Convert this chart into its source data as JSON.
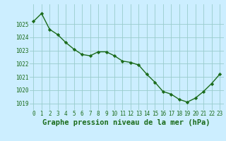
{
  "x": [
    0,
    1,
    2,
    3,
    4,
    5,
    6,
    7,
    8,
    9,
    10,
    11,
    12,
    13,
    14,
    15,
    16,
    17,
    18,
    19,
    20,
    21,
    22,
    23
  ],
  "y": [
    1025.2,
    1025.8,
    1024.6,
    1024.2,
    1023.6,
    1023.1,
    1022.7,
    1022.6,
    1022.9,
    1022.9,
    1022.6,
    1022.2,
    1022.1,
    1021.9,
    1021.2,
    1020.6,
    1019.9,
    1019.7,
    1019.3,
    1019.1,
    1019.4,
    1019.9,
    1020.5,
    1021.2
  ],
  "line_color": "#1a6b1a",
  "marker": "D",
  "marker_size": 2.2,
  "bg_color": "#cceeff",
  "grid_color": "#99cccc",
  "xlabel": "Graphe pression niveau de la mer (hPa)",
  "xlim": [
    -0.5,
    23.5
  ],
  "ylim": [
    1018.5,
    1026.5
  ],
  "yticks": [
    1019,
    1020,
    1021,
    1022,
    1023,
    1024,
    1025
  ],
  "xticks": [
    0,
    1,
    2,
    3,
    4,
    5,
    6,
    7,
    8,
    9,
    10,
    11,
    12,
    13,
    14,
    15,
    16,
    17,
    18,
    19,
    20,
    21,
    22,
    23
  ],
  "tick_fontsize": 5.5,
  "label_fontsize": 7.5,
  "line_width": 1.0
}
